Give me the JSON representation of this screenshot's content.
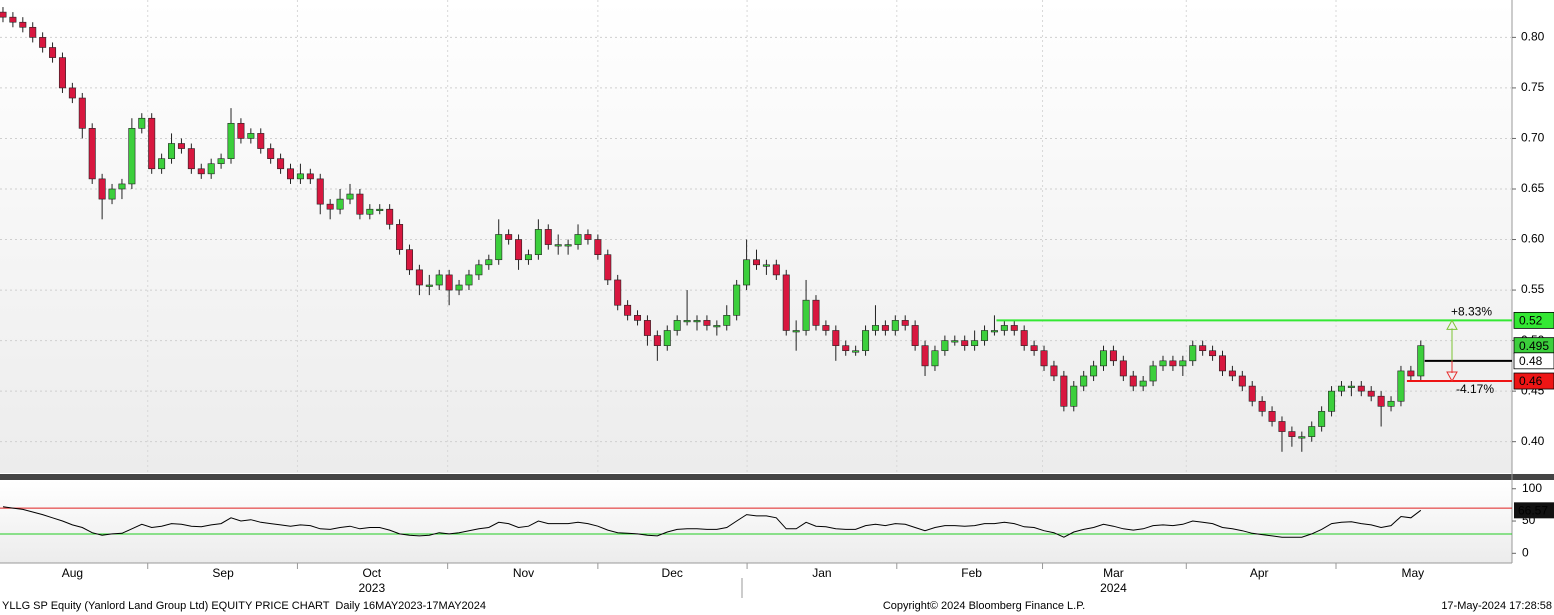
{
  "chart_data": [
    {
      "type": "candlestick",
      "ohlc": [
        [
          0.825,
          0.83,
          0.815,
          0.82
        ],
        [
          0.82,
          0.825,
          0.81,
          0.815
        ],
        [
          0.815,
          0.82,
          0.805,
          0.81
        ],
        [
          0.81,
          0.815,
          0.795,
          0.8
        ],
        [
          0.8,
          0.805,
          0.785,
          0.79
        ],
        [
          0.79,
          0.795,
          0.775,
          0.78
        ],
        [
          0.78,
          0.785,
          0.745,
          0.75
        ],
        [
          0.75,
          0.755,
          0.735,
          0.74
        ],
        [
          0.74,
          0.745,
          0.7,
          0.71
        ],
        [
          0.71,
          0.715,
          0.655,
          0.66
        ],
        [
          0.66,
          0.665,
          0.62,
          0.64
        ],
        [
          0.64,
          0.655,
          0.635,
          0.65
        ],
        [
          0.65,
          0.66,
          0.64,
          0.655
        ],
        [
          0.655,
          0.72,
          0.65,
          0.71
        ],
        [
          0.71,
          0.725,
          0.705,
          0.72
        ],
        [
          0.72,
          0.725,
          0.665,
          0.67
        ],
        [
          0.67,
          0.685,
          0.665,
          0.68
        ],
        [
          0.68,
          0.705,
          0.675,
          0.695
        ],
        [
          0.695,
          0.7,
          0.685,
          0.69
        ],
        [
          0.69,
          0.695,
          0.665,
          0.67
        ],
        [
          0.67,
          0.675,
          0.66,
          0.665
        ],
        [
          0.665,
          0.68,
          0.66,
          0.675
        ],
        [
          0.675,
          0.685,
          0.67,
          0.68
        ],
        [
          0.68,
          0.73,
          0.675,
          0.715
        ],
        [
          0.715,
          0.72,
          0.695,
          0.7
        ],
        [
          0.7,
          0.71,
          0.695,
          0.705
        ],
        [
          0.705,
          0.71,
          0.685,
          0.69
        ],
        [
          0.69,
          0.695,
          0.675,
          0.68
        ],
        [
          0.68,
          0.685,
          0.665,
          0.67
        ],
        [
          0.67,
          0.675,
          0.655,
          0.66
        ],
        [
          0.66,
          0.675,
          0.655,
          0.665
        ],
        [
          0.665,
          0.67,
          0.655,
          0.66
        ],
        [
          0.66,
          0.665,
          0.625,
          0.635
        ],
        [
          0.635,
          0.64,
          0.62,
          0.63
        ],
        [
          0.63,
          0.65,
          0.625,
          0.64
        ],
        [
          0.64,
          0.655,
          0.635,
          0.645
        ],
        [
          0.645,
          0.65,
          0.62,
          0.625
        ],
        [
          0.625,
          0.635,
          0.62,
          0.63
        ],
        [
          0.63,
          0.635,
          0.625,
          0.63
        ],
        [
          0.63,
          0.635,
          0.61,
          0.615
        ],
        [
          0.615,
          0.62,
          0.585,
          0.59
        ],
        [
          0.59,
          0.595,
          0.565,
          0.57
        ],
        [
          0.57,
          0.575,
          0.545,
          0.555
        ],
        [
          0.555,
          0.565,
          0.545,
          0.555
        ],
        [
          0.555,
          0.57,
          0.55,
          0.565
        ],
        [
          0.565,
          0.57,
          0.535,
          0.55
        ],
        [
          0.55,
          0.56,
          0.545,
          0.555
        ],
        [
          0.555,
          0.57,
          0.55,
          0.565
        ],
        [
          0.565,
          0.58,
          0.56,
          0.575
        ],
        [
          0.575,
          0.585,
          0.57,
          0.58
        ],
        [
          0.58,
          0.62,
          0.575,
          0.605
        ],
        [
          0.605,
          0.61,
          0.595,
          0.6
        ],
        [
          0.6,
          0.605,
          0.57,
          0.58
        ],
        [
          0.58,
          0.59,
          0.575,
          0.585
        ],
        [
          0.585,
          0.62,
          0.58,
          0.61
        ],
        [
          0.61,
          0.615,
          0.59,
          0.595
        ],
        [
          0.595,
          0.605,
          0.585,
          0.595
        ],
        [
          0.595,
          0.6,
          0.585,
          0.595
        ],
        [
          0.595,
          0.615,
          0.59,
          0.605
        ],
        [
          0.605,
          0.61,
          0.595,
          0.6
        ],
        [
          0.6,
          0.605,
          0.58,
          0.585
        ],
        [
          0.585,
          0.59,
          0.555,
          0.56
        ],
        [
          0.56,
          0.565,
          0.53,
          0.535
        ],
        [
          0.535,
          0.54,
          0.52,
          0.525
        ],
        [
          0.525,
          0.53,
          0.515,
          0.52
        ],
        [
          0.52,
          0.525,
          0.495,
          0.505
        ],
        [
          0.505,
          0.51,
          0.48,
          0.495
        ],
        [
          0.495,
          0.515,
          0.49,
          0.51
        ],
        [
          0.51,
          0.525,
          0.505,
          0.52
        ],
        [
          0.52,
          0.55,
          0.515,
          0.52
        ],
        [
          0.52,
          0.525,
          0.51,
          0.52
        ],
        [
          0.52,
          0.525,
          0.51,
          0.515
        ],
        [
          0.515,
          0.52,
          0.505,
          0.515
        ],
        [
          0.515,
          0.535,
          0.51,
          0.525
        ],
        [
          0.525,
          0.56,
          0.52,
          0.555
        ],
        [
          0.555,
          0.6,
          0.55,
          0.58
        ],
        [
          0.58,
          0.59,
          0.57,
          0.575
        ],
        [
          0.575,
          0.58,
          0.565,
          0.575
        ],
        [
          0.575,
          0.58,
          0.56,
          0.565
        ],
        [
          0.565,
          0.57,
          0.505,
          0.51
        ],
        [
          0.51,
          0.52,
          0.49,
          0.51
        ],
        [
          0.51,
          0.56,
          0.505,
          0.54
        ],
        [
          0.54,
          0.545,
          0.51,
          0.515
        ],
        [
          0.515,
          0.52,
          0.505,
          0.51
        ],
        [
          0.51,
          0.515,
          0.48,
          0.495
        ],
        [
          0.495,
          0.5,
          0.485,
          0.49
        ],
        [
          0.49,
          0.495,
          0.485,
          0.49
        ],
        [
          0.49,
          0.515,
          0.485,
          0.51
        ],
        [
          0.51,
          0.535,
          0.505,
          0.515
        ],
        [
          0.515,
          0.52,
          0.505,
          0.51
        ],
        [
          0.51,
          0.525,
          0.505,
          0.52
        ],
        [
          0.52,
          0.525,
          0.51,
          0.515
        ],
        [
          0.515,
          0.52,
          0.49,
          0.495
        ],
        [
          0.495,
          0.5,
          0.465,
          0.475
        ],
        [
          0.475,
          0.495,
          0.47,
          0.49
        ],
        [
          0.49,
          0.505,
          0.485,
          0.5
        ],
        [
          0.5,
          0.505,
          0.495,
          0.5
        ],
        [
          0.5,
          0.505,
          0.49,
          0.495
        ],
        [
          0.495,
          0.51,
          0.49,
          0.5
        ],
        [
          0.5,
          0.515,
          0.495,
          0.51
        ],
        [
          0.51,
          0.525,
          0.505,
          0.51
        ],
        [
          0.51,
          0.52,
          0.505,
          0.515
        ],
        [
          0.515,
          0.52,
          0.505,
          0.51
        ],
        [
          0.51,
          0.515,
          0.49,
          0.495
        ],
        [
          0.495,
          0.5,
          0.485,
          0.49
        ],
        [
          0.49,
          0.495,
          0.47,
          0.475
        ],
        [
          0.475,
          0.48,
          0.46,
          0.465
        ],
        [
          0.465,
          0.47,
          0.43,
          0.435
        ],
        [
          0.435,
          0.46,
          0.43,
          0.455
        ],
        [
          0.455,
          0.47,
          0.45,
          0.465
        ],
        [
          0.465,
          0.48,
          0.46,
          0.475
        ],
        [
          0.475,
          0.495,
          0.47,
          0.49
        ],
        [
          0.49,
          0.495,
          0.475,
          0.48
        ],
        [
          0.48,
          0.485,
          0.46,
          0.465
        ],
        [
          0.465,
          0.47,
          0.45,
          0.455
        ],
        [
          0.455,
          0.465,
          0.45,
          0.46
        ],
        [
          0.46,
          0.48,
          0.455,
          0.475
        ],
        [
          0.475,
          0.485,
          0.47,
          0.48
        ],
        [
          0.48,
          0.485,
          0.47,
          0.475
        ],
        [
          0.475,
          0.485,
          0.465,
          0.48
        ],
        [
          0.48,
          0.5,
          0.475,
          0.495
        ],
        [
          0.495,
          0.5,
          0.485,
          0.49
        ],
        [
          0.49,
          0.495,
          0.48,
          0.485
        ],
        [
          0.485,
          0.49,
          0.465,
          0.47
        ],
        [
          0.47,
          0.475,
          0.46,
          0.465
        ],
        [
          0.465,
          0.47,
          0.45,
          0.455
        ],
        [
          0.455,
          0.46,
          0.435,
          0.44
        ],
        [
          0.44,
          0.445,
          0.425,
          0.43
        ],
        [
          0.43,
          0.435,
          0.415,
          0.42
        ],
        [
          0.42,
          0.425,
          0.39,
          0.41
        ],
        [
          0.41,
          0.415,
          0.395,
          0.405
        ],
        [
          0.405,
          0.41,
          0.39,
          0.405
        ],
        [
          0.405,
          0.42,
          0.4,
          0.415
        ],
        [
          0.415,
          0.435,
          0.41,
          0.43
        ],
        [
          0.43,
          0.455,
          0.425,
          0.45
        ],
        [
          0.45,
          0.46,
          0.445,
          0.455
        ],
        [
          0.455,
          0.46,
          0.445,
          0.455
        ],
        [
          0.455,
          0.46,
          0.445,
          0.45
        ],
        [
          0.45,
          0.455,
          0.44,
          0.445
        ],
        [
          0.445,
          0.45,
          0.415,
          0.435
        ],
        [
          0.435,
          0.445,
          0.43,
          0.44
        ],
        [
          0.44,
          0.475,
          0.435,
          0.47
        ],
        [
          0.47,
          0.475,
          0.46,
          0.465
        ],
        [
          0.465,
          0.5,
          0.46,
          0.495
        ]
      ],
      "up_color": "#3ccf3c",
      "down_color": "#d8173f",
      "xlim": [
        -0.3,
        152.2
      ],
      "xticks": [
        {
          "value": 7,
          "label": "Aug"
        },
        {
          "value": 22.2,
          "label": "Sep"
        },
        {
          "value": 37.2,
          "label": "Oct"
        },
        {
          "value": 52.5,
          "label": "Nov"
        },
        {
          "value": 67.5,
          "label": "Dec"
        },
        {
          "value": 82.6,
          "label": "Jan"
        },
        {
          "value": 97.7,
          "label": "Feb"
        },
        {
          "value": 112,
          "label": "Mar"
        },
        {
          "value": 126.7,
          "label": "Apr"
        },
        {
          "value": 142.2,
          "label": "May"
        }
      ],
      "year_labels": [
        {
          "value": 37.2,
          "label": "2023"
        },
        {
          "value": 112,
          "label": "2024"
        }
      ],
      "ylim": [
        0.37,
        0.835
      ],
      "yticks": [
        {
          "value": 0.8,
          "label": "0.80"
        },
        {
          "value": 0.75,
          "label": "0.75"
        },
        {
          "value": 0.7,
          "label": "0.70"
        },
        {
          "value": 0.65,
          "label": "0.65"
        },
        {
          "value": 0.6,
          "label": "0.60"
        },
        {
          "value": 0.55,
          "label": "0.55"
        },
        {
          "value": 0.5,
          "label": "0.50"
        },
        {
          "value": 0.45,
          "label": "0.45"
        },
        {
          "value": 0.4,
          "label": "0.40"
        }
      ],
      "grid": true,
      "tags": [
        {
          "value": 0.52,
          "color": "#33e833",
          "text_color": "#000000",
          "line": true
        },
        {
          "value": 0.495,
          "color": "#3ccf3c",
          "text_color": "#000000",
          "line": false
        },
        {
          "value": 0.48,
          "color": "#ffffff",
          "text_color": "#000000",
          "line": true
        },
        {
          "value": 0.46,
          "color": "#ee1515",
          "text_color": "#ffffff",
          "line": true
        }
      ],
      "annotations": [
        {
          "text": "+8.33%",
          "color": "#7cc434"
        },
        {
          "text": "-4.17%",
          "color": "#e83030"
        }
      ]
    },
    {
      "type": "line",
      "values": [
        72,
        70,
        68,
        64,
        60,
        55,
        50,
        44,
        40,
        32,
        28,
        30,
        31,
        38,
        45,
        40,
        42,
        46,
        45,
        42,
        41,
        44,
        46,
        55,
        50,
        52,
        48,
        46,
        44,
        42,
        44,
        43,
        38,
        37,
        40,
        42,
        38,
        40,
        40,
        36,
        30,
        28,
        27,
        28,
        32,
        30,
        32,
        35,
        38,
        40,
        48,
        46,
        40,
        42,
        50,
        46,
        46,
        46,
        48,
        46,
        42,
        36,
        32,
        31,
        30,
        28,
        27,
        33,
        37,
        38,
        38,
        37,
        37,
        40,
        50,
        60,
        58,
        58,
        55,
        38,
        38,
        48,
        42,
        41,
        38,
        37,
        37,
        43,
        45,
        43,
        46,
        45,
        40,
        35,
        40,
        43,
        43,
        42,
        43,
        46,
        46,
        48,
        46,
        41,
        40,
        35,
        32,
        25,
        33,
        37,
        40,
        45,
        42,
        38,
        36,
        38,
        43,
        44,
        43,
        45,
        50,
        48,
        46,
        40,
        38,
        35,
        31,
        29,
        27,
        25,
        25,
        25,
        30,
        37,
        46,
        48,
        49,
        46,
        44,
        40,
        43,
        57,
        55,
        66.57
      ],
      "color": "#000000",
      "ylim": [
        -15,
        112
      ],
      "yticks": [
        0,
        50,
        100
      ],
      "levels": [
        {
          "value": 70,
          "color": "#e02020"
        },
        {
          "value": 30,
          "color": "#22cc22"
        }
      ]
    }
  ],
  "footer": {
    "left": "YLLG SP Equity (Yanlord Land Group Ltd) EQUITY PRICE CHART  Daily 16MAY2023-17MAY2024",
    "center": "Copyright© 2024 Bloomberg Finance L.P.",
    "right": "17-May-2024 17:28:58"
  }
}
